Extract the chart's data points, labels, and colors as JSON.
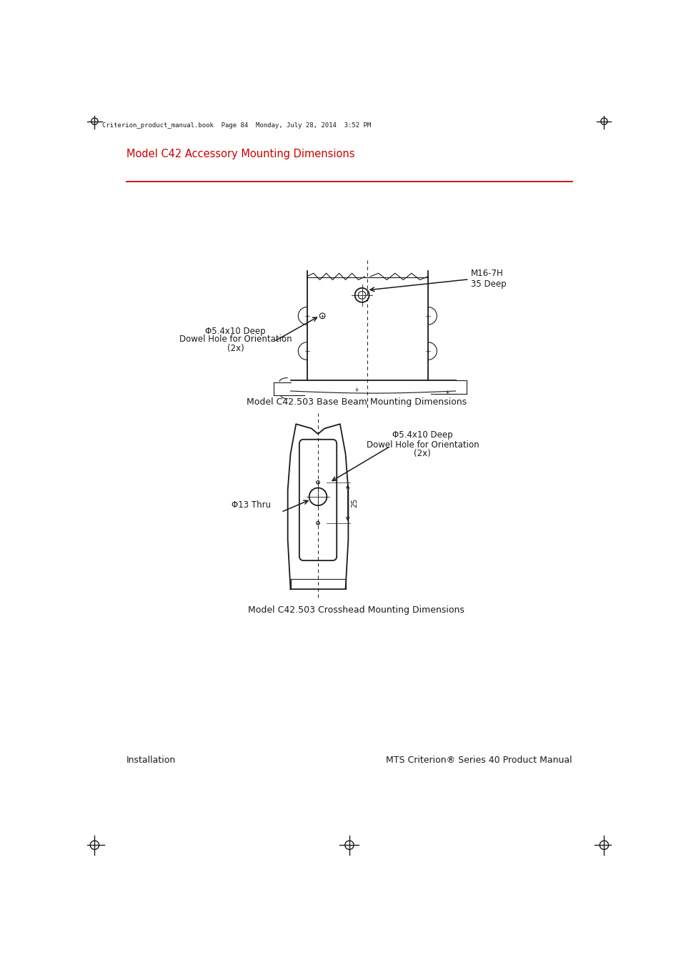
{
  "page_title": "Model C42 Accessory Mounting Dimensions",
  "page_title_color": "#cc0000",
  "header_text": "Criterion_product_manual.book  Page 84  Monday, July 28, 2014  3:52 PM",
  "diagram1_caption": "Model C42.503 Base Beam Mounting Dimensions",
  "diagram2_caption": "Model C42.503 Crosshead Mounting Dimensions",
  "footer_left": "Installation",
  "footer_right": "MTS Criterion® Series 40 Product Manual",
  "bg_color": "#ffffff",
  "line_color": "#1a1a1a"
}
